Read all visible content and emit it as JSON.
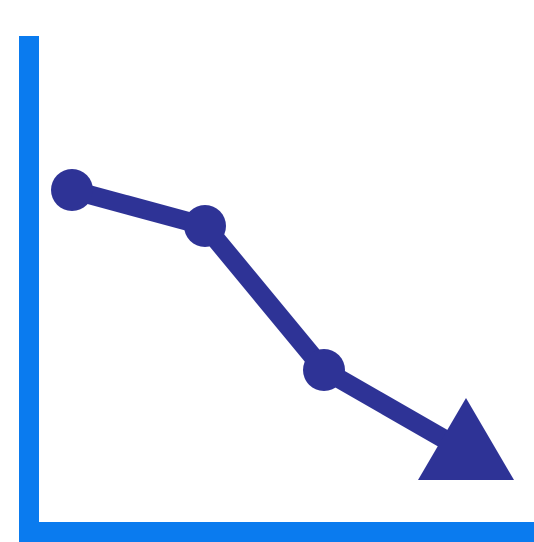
{
  "graphic": {
    "name": "declining-trend-chart-icon",
    "colors": {
      "background": "#ffffff",
      "axes": "#0A7BEF",
      "line": "#2E3396",
      "points": "#2E3396",
      "arrowhead": "#2E3396"
    },
    "series": {
      "point_count": 4,
      "trend": "decreasing",
      "ends_with_arrow": true
    }
  }
}
